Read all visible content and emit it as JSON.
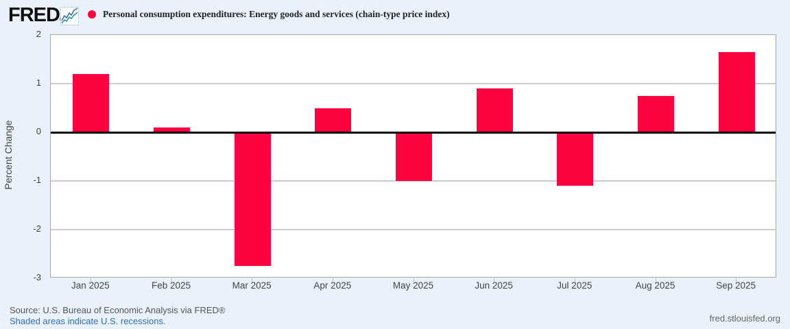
{
  "header": {
    "logo_text": "FRED",
    "logo_mark": "®"
  },
  "chart_data": {
    "type": "bar",
    "title": "Personal consumption expenditures: Energy goods and services (chain-type price index)",
    "categories": [
      "Jan 2025",
      "Feb 2025",
      "Mar 2025",
      "Apr 2025",
      "May 2025",
      "Jun 2025",
      "Jul 2025",
      "Aug 2025",
      "Sep 2025"
    ],
    "values": [
      1.2,
      0.1,
      -2.75,
      0.5,
      -1.0,
      0.9,
      -1.1,
      0.75,
      1.65
    ],
    "xlabel": "",
    "ylabel": "Percent Change",
    "ylim": [
      -3,
      2
    ],
    "yticks": [
      2,
      1,
      0,
      -1,
      -2,
      -3
    ],
    "grid": true,
    "legend_position": "top-left",
    "bar_color": "#fd0340",
    "zero_line_color": "#000000",
    "gridline_color": "#cccccc",
    "plot_background": "#ffffff",
    "page_background": "#e9f1fa"
  },
  "footer": {
    "source": "Source: U.S. Bureau of Economic Analysis via FRED®",
    "recession_note": "Shaded areas indicate U.S. recessions.",
    "site": "fred.stlouisfed.org"
  }
}
